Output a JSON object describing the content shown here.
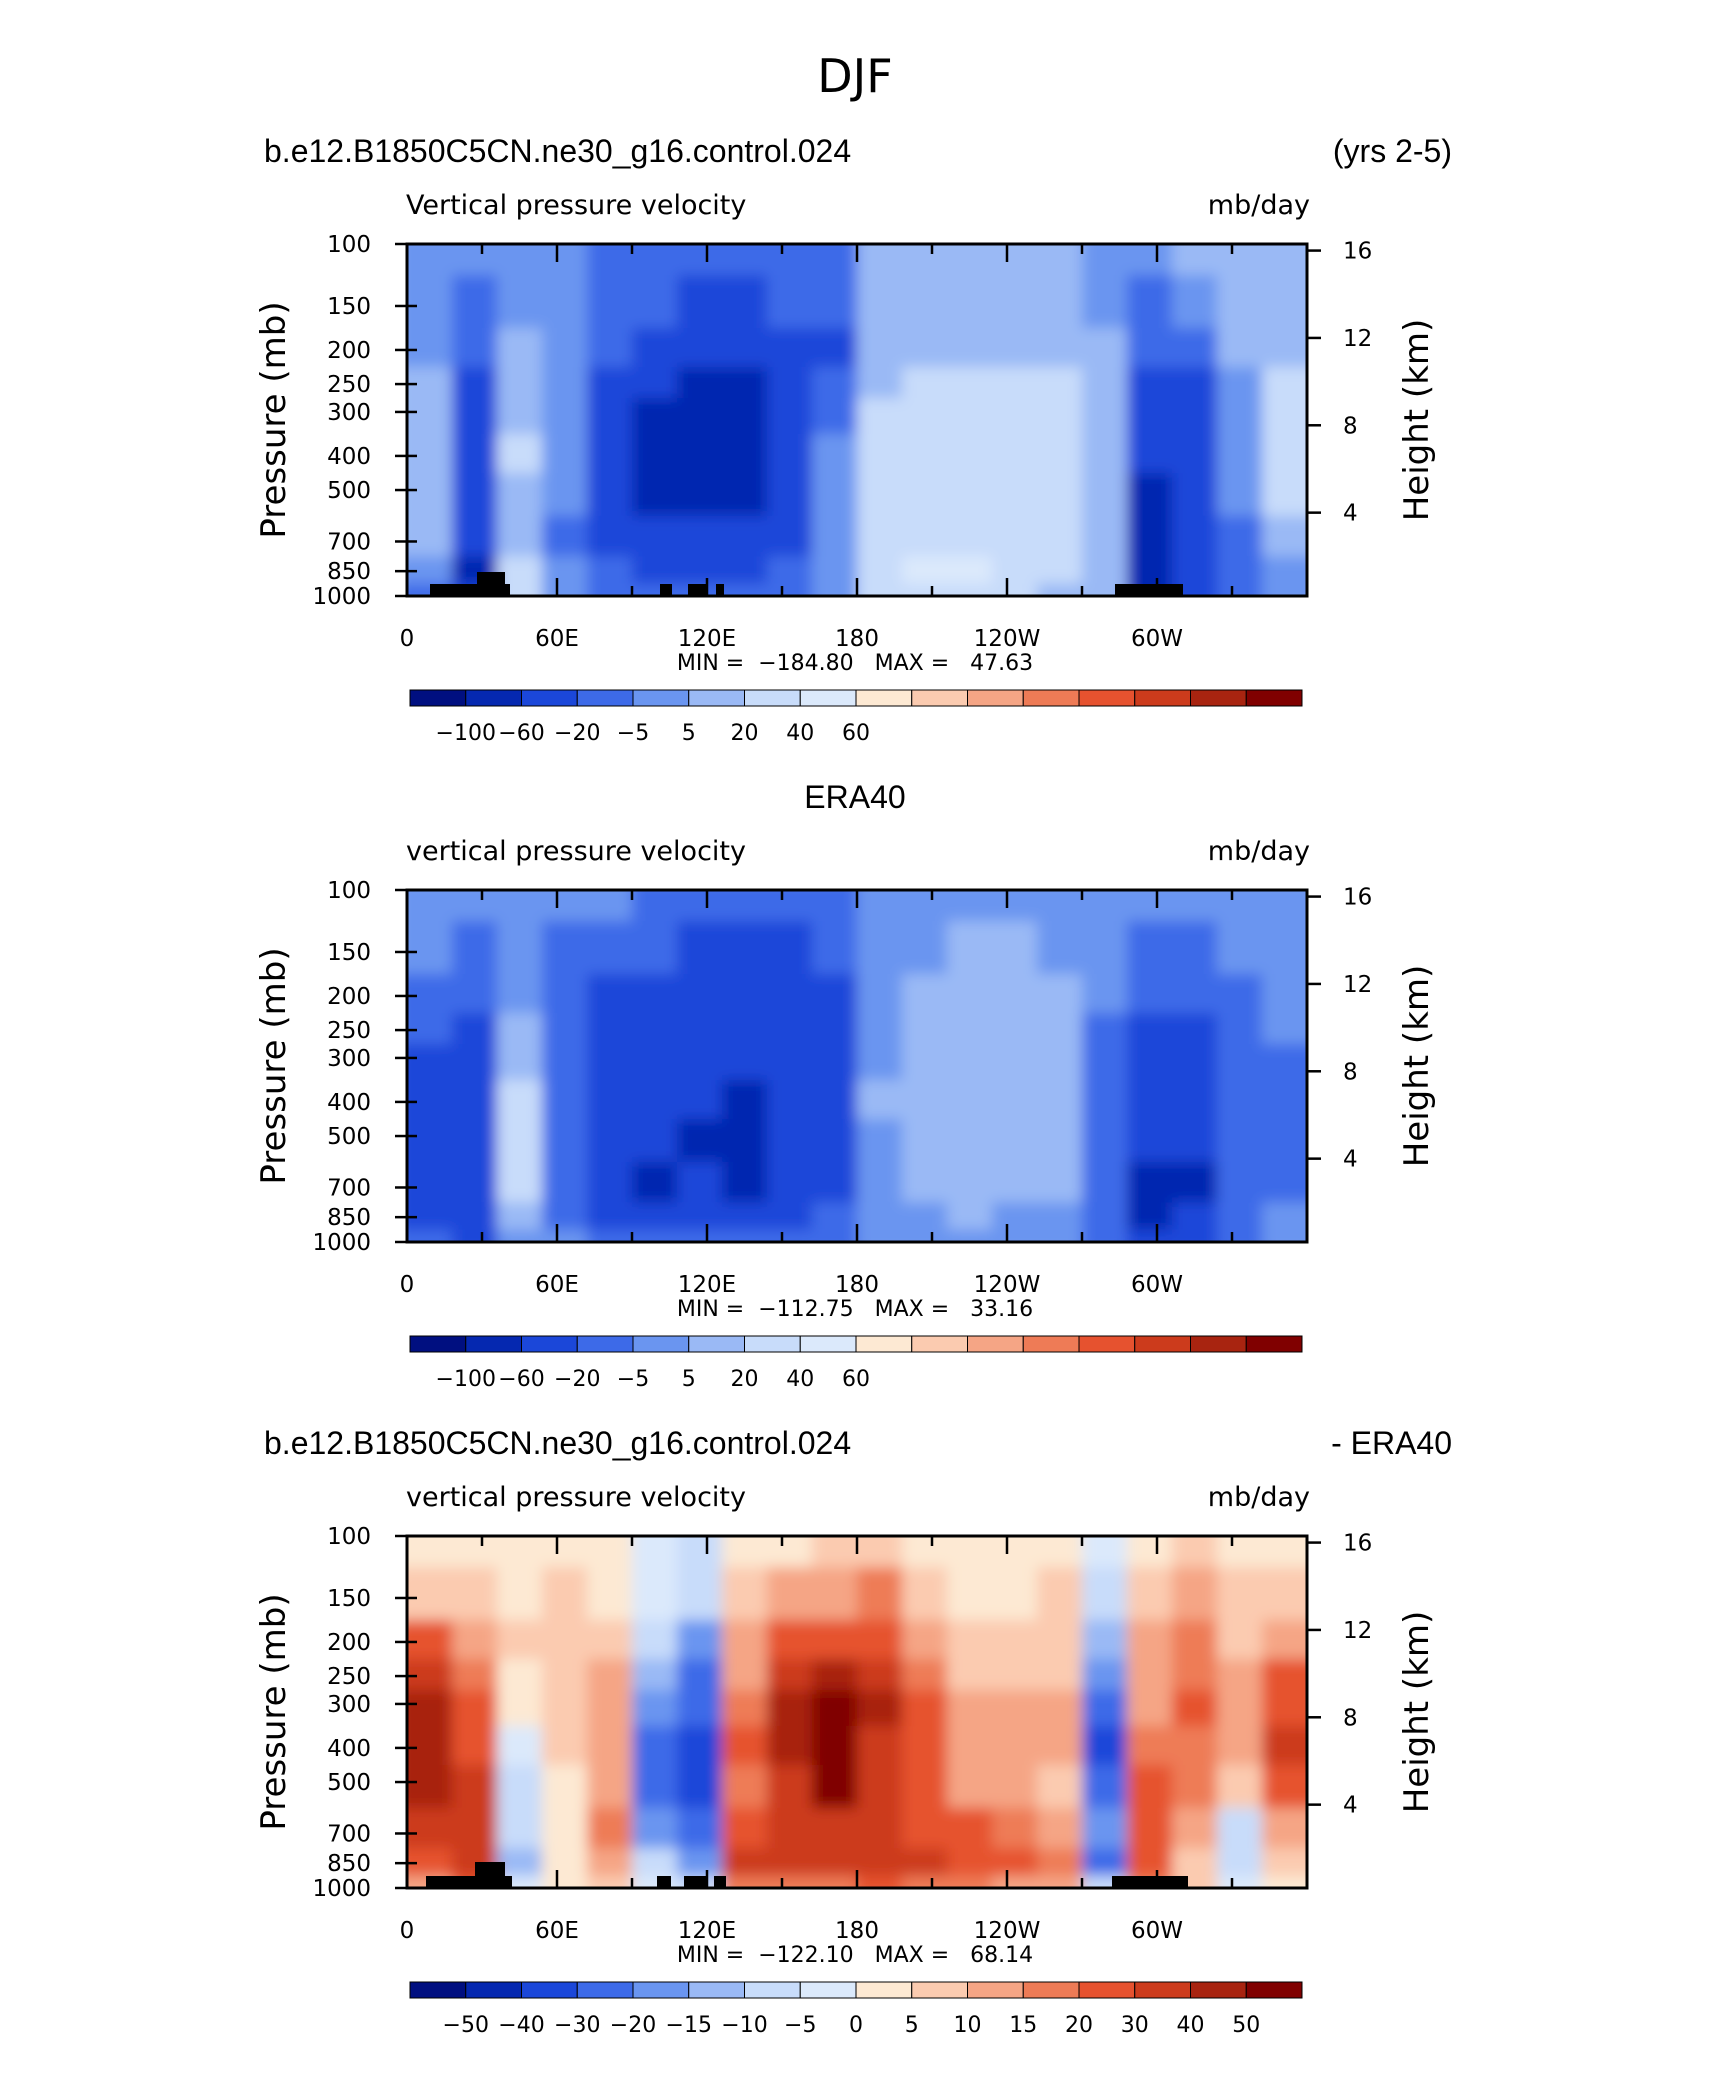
{
  "main_title": "DJF",
  "panels": [
    {
      "title_left": "b.e12.B1850C5CN.ne30_g16.control.024",
      "title_center": "",
      "title_right": "(yrs 2-5)",
      "subtitle_left": "Vertical pressure velocity",
      "subtitle_right": "mb/day",
      "stats": "MIN =  −184.80   MAX =   47.63",
      "colorbar_labels": [
        "−100",
        "−60",
        "−20",
        "−5",
        "5",
        "20",
        "40",
        "60"
      ]
    },
    {
      "title_left": "",
      "title_center": "ERA40",
      "title_right": "",
      "subtitle_left": "vertical pressure velocity",
      "subtitle_right": "mb/day",
      "stats": "MIN =  −112.75   MAX =   33.16",
      "colorbar_labels": [
        "−100",
        "−60",
        "−20",
        "−5",
        "5",
        "20",
        "40",
        "60"
      ]
    },
    {
      "title_left": "b.e12.B1850C5CN.ne30_g16.control.024",
      "title_center": "",
      "title_right": "- ERA40",
      "subtitle_left": "vertical pressure velocity",
      "subtitle_right": "mb/day",
      "stats": "MIN =  −122.10   MAX =   68.14",
      "colorbar_labels": [
        "−50",
        "−40",
        "−30",
        "−20",
        "−15",
        "−10",
        "−5",
        "0",
        "5",
        "10",
        "15",
        "20",
        "30",
        "40",
        "50"
      ]
    }
  ],
  "axes": {
    "ylabel_left": "Pressure (mb)",
    "ylabel_right": "Height (km)",
    "pressure_ticks": [
      "100",
      "150",
      "200",
      "250",
      "300",
      "400",
      "500",
      "700",
      "850",
      "1000"
    ],
    "height_ticks": [
      "16",
      "12",
      "8",
      "4"
    ],
    "lon_ticks": [
      "0",
      "60E",
      "120E",
      "180",
      "120W",
      "60W"
    ]
  },
  "colors": {
    "abs_scale": [
      "#000f80",
      "#0528b0",
      "#1b47d9",
      "#3d6ae8",
      "#6a95f0",
      "#9ab9f5",
      "#c8dcfa",
      "#dbe9fb",
      "#fde9d3",
      "#fbcbb0",
      "#f5a585",
      "#ee7b56",
      "#e6522f",
      "#cc3b1c",
      "#a82410",
      "#800000"
    ],
    "diff_scale": [
      "#000f80",
      "#0528b0",
      "#1b47d9",
      "#3d6ae8",
      "#6a95f0",
      "#9ab9f5",
      "#c8dcfa",
      "#dbe9fb",
      "#fde9d3",
      "#fbcbb0",
      "#f5a585",
      "#ee7b56",
      "#e6522f",
      "#cc3b1c",
      "#a82410",
      "#800000"
    ]
  },
  "chart_data": [
    {
      "type": "heatmap",
      "title": "b.e12.B1850C5CN.ne30_g16.control.024 (yrs 2-5)",
      "variable": "Vertical pressure velocity",
      "units": "mb/day",
      "xlabel": "",
      "ylabel": "Pressure (mb)",
      "ylabel_right": "Height (km)",
      "x_ticks": [
        "0",
        "60E",
        "120E",
        "180",
        "120W",
        "60W"
      ],
      "y_ticks": [
        100,
        150,
        200,
        250,
        300,
        400,
        500,
        700,
        850,
        1000
      ],
      "y_scale": "log",
      "ylim": [
        1000,
        100
      ],
      "min": -184.8,
      "max": 47.63,
      "contour_levels": [
        -100,
        -60,
        -20,
        -5,
        5,
        20,
        40,
        60
      ],
      "x": [
        0,
        18,
        36,
        54,
        72,
        90,
        108,
        126,
        144,
        162,
        180,
        198,
        216,
        234,
        252,
        270,
        288,
        306,
        324,
        342
      ],
      "y": [
        100,
        150,
        200,
        250,
        300,
        400,
        500,
        700,
        850,
        1000
      ],
      "values": [
        [
          -3,
          -3,
          0,
          2,
          -8,
          -10,
          -15,
          -15,
          -12,
          -10,
          5,
          6,
          6,
          5,
          5,
          2,
          -3,
          5,
          6,
          8
        ],
        [
          -3,
          -8,
          0,
          2,
          -10,
          -20,
          -25,
          -30,
          -20,
          -15,
          6,
          8,
          8,
          7,
          6,
          3,
          -8,
          4,
          8,
          10
        ],
        [
          2,
          -15,
          5,
          3,
          -20,
          -40,
          -50,
          -55,
          -40,
          -25,
          10,
          15,
          14,
          12,
          10,
          5,
          -20,
          -10,
          5,
          15
        ],
        [
          5,
          -30,
          10,
          3,
          -30,
          -55,
          -70,
          -75,
          -55,
          -20,
          15,
          25,
          24,
          22,
          20,
          8,
          -40,
          -25,
          3,
          20
        ],
        [
          10,
          -40,
          15,
          2,
          -35,
          -70,
          -80,
          -85,
          -60,
          -10,
          25,
          30,
          28,
          26,
          25,
          12,
          -50,
          -30,
          2,
          25
        ],
        [
          15,
          -50,
          20,
          0,
          -40,
          -80,
          -75,
          -80,
          -50,
          -5,
          30,
          30,
          30,
          28,
          28,
          15,
          -60,
          -35,
          0,
          30
        ],
        [
          12,
          -55,
          18,
          -5,
          -40,
          -70,
          -65,
          -70,
          -40,
          -2,
          30,
          32,
          30,
          28,
          30,
          15,
          -70,
          -40,
          -5,
          20
        ],
        [
          5,
          -60,
          15,
          -8,
          -35,
          -50,
          -50,
          -55,
          -25,
          0,
          25,
          30,
          30,
          28,
          25,
          10,
          -80,
          -45,
          -15,
          5
        ],
        [
          -5,
          -70,
          30,
          -5,
          -20,
          -30,
          -35,
          -40,
          -15,
          2,
          30,
          40,
          40,
          35,
          30,
          12,
          -90,
          -50,
          -20,
          -5
        ],
        [
          -10,
          -60,
          20,
          -3,
          -10,
          -15,
          -20,
          -20,
          -8,
          3,
          20,
          25,
          25,
          20,
          18,
          10,
          -70,
          -40,
          -15,
          -5
        ]
      ]
    },
    {
      "type": "heatmap",
      "title": "ERA40",
      "variable": "vertical pressure velocity",
      "units": "mb/day",
      "xlabel": "",
      "ylabel": "Pressure (mb)",
      "ylabel_right": "Height (km)",
      "x_ticks": [
        "0",
        "60E",
        "120E",
        "180",
        "120W",
        "60W"
      ],
      "y_ticks": [
        100,
        150,
        200,
        250,
        300,
        400,
        500,
        700,
        850,
        1000
      ],
      "y_scale": "log",
      "ylim": [
        1000,
        100
      ],
      "min": -112.75,
      "max": 33.16,
      "contour_levels": [
        -100,
        -60,
        -20,
        -5,
        5,
        20,
        40,
        60
      ],
      "x": [
        0,
        18,
        36,
        54,
        72,
        90,
        108,
        126,
        144,
        162,
        180,
        198,
        216,
        234,
        252,
        270,
        288,
        306,
        324,
        342
      ],
      "y": [
        100,
        150,
        200,
        250,
        300,
        400,
        500,
        700,
        850,
        1000
      ],
      "values": [
        [
          -3,
          -4,
          2,
          -3,
          -5,
          -6,
          -8,
          -10,
          -10,
          -6,
          -3,
          3,
          4,
          3,
          3,
          -3,
          -4,
          -4,
          -2,
          -2
        ],
        [
          -4,
          -10,
          3,
          -6,
          -15,
          -20,
          -25,
          -30,
          -30,
          -20,
          -4,
          4,
          6,
          5,
          4,
          -4,
          -8,
          -10,
          -4,
          -3
        ],
        [
          -8,
          -18,
          4,
          -10,
          -25,
          -35,
          -40,
          -45,
          -45,
          -35,
          -4,
          5,
          8,
          8,
          6,
          -5,
          -15,
          -20,
          -6,
          -4
        ],
        [
          -15,
          -28,
          8,
          -12,
          -35,
          -45,
          -50,
          -55,
          -55,
          -40,
          -2,
          6,
          10,
          10,
          8,
          -6,
          -25,
          -30,
          -8,
          -5
        ],
        [
          -25,
          -35,
          14,
          -15,
          -40,
          -50,
          -55,
          -60,
          -60,
          -45,
          0,
          10,
          12,
          12,
          10,
          -8,
          -35,
          -40,
          -12,
          -6
        ],
        [
          -30,
          -40,
          20,
          -15,
          -45,
          -55,
          -60,
          -65,
          -60,
          -45,
          5,
          12,
          14,
          14,
          12,
          -10,
          -50,
          -50,
          -15,
          -8
        ],
        [
          -35,
          -45,
          22,
          -15,
          -45,
          -60,
          -65,
          -70,
          -60,
          -40,
          3,
          10,
          14,
          14,
          12,
          -12,
          -60,
          -60,
          -18,
          -8
        ],
        [
          -40,
          -50,
          20,
          -12,
          -40,
          -70,
          -60,
          -65,
          -55,
          -35,
          0,
          6,
          10,
          10,
          8,
          -15,
          -80,
          -70,
          -20,
          -10
        ],
        [
          -35,
          -55,
          10,
          -8,
          -25,
          -50,
          -40,
          -40,
          -35,
          -20,
          -2,
          3,
          5,
          4,
          -2,
          -15,
          -100,
          -60,
          -15,
          -5
        ],
        [
          -10,
          -40,
          -5,
          -4,
          -10,
          -20,
          -15,
          -15,
          -12,
          -8,
          -2,
          2,
          2,
          1,
          -3,
          -8,
          -40,
          -25,
          -8,
          -3
        ]
      ]
    },
    {
      "type": "heatmap",
      "title": "b.e12.B1850C5CN.ne30_g16.control.024 - ERA40",
      "variable": "vertical pressure velocity",
      "units": "mb/day",
      "xlabel": "",
      "ylabel": "Pressure (mb)",
      "ylabel_right": "Height (km)",
      "x_ticks": [
        "0",
        "60E",
        "120E",
        "180",
        "120W",
        "60W"
      ],
      "y_ticks": [
        100,
        150,
        200,
        250,
        300,
        400,
        500,
        700,
        850,
        1000
      ],
      "y_scale": "log",
      "ylim": [
        1000,
        100
      ],
      "min": -122.1,
      "max": 68.14,
      "contour_levels": [
        -50,
        -40,
        -30,
        -20,
        -15,
        -10,
        -5,
        0,
        5,
        10,
        15,
        20,
        30,
        40,
        50
      ],
      "x": [
        0,
        18,
        36,
        54,
        72,
        90,
        108,
        126,
        144,
        162,
        180,
        198,
        216,
        234,
        252,
        270,
        288,
        306,
        324,
        342
      ],
      "y": [
        100,
        150,
        200,
        250,
        300,
        400,
        500,
        700,
        850,
        1000
      ],
      "values": [
        [
          2,
          4,
          2,
          4,
          3,
          -2,
          -6,
          3,
          4,
          5,
          7,
          4,
          2,
          1,
          2,
          -3,
          2,
          6,
          4,
          3
        ],
        [
          8,
          6,
          3,
          6,
          4,
          -4,
          -10,
          6,
          10,
          14,
          16,
          6,
          4,
          3,
          5,
          -8,
          5,
          10,
          6,
          6
        ],
        [
          20,
          10,
          6,
          8,
          8,
          -10,
          -20,
          12,
          20,
          28,
          26,
          12,
          6,
          6,
          6,
          -12,
          10,
          15,
          8,
          12
        ],
        [
          30,
          15,
          4,
          8,
          10,
          -15,
          -25,
          14,
          35,
          40,
          35,
          18,
          8,
          8,
          8,
          -18,
          12,
          18,
          10,
          20
        ],
        [
          40,
          20,
          3,
          6,
          10,
          -20,
          -30,
          18,
          45,
          55,
          40,
          22,
          12,
          10,
          10,
          -25,
          14,
          20,
          12,
          28
        ],
        [
          45,
          25,
          -3,
          5,
          12,
          -25,
          -35,
          20,
          45,
          60,
          38,
          24,
          14,
          10,
          10,
          -35,
          18,
          18,
          14,
          30
        ],
        [
          40,
          30,
          -6,
          4,
          14,
          -28,
          -35,
          18,
          38,
          50,
          35,
          22,
          14,
          10,
          8,
          -30,
          22,
          15,
          8,
          20
        ],
        [
          30,
          35,
          -10,
          3,
          15,
          -20,
          -30,
          25,
          35,
          35,
          30,
          25,
          20,
          18,
          12,
          -20,
          28,
          10,
          -8,
          10
        ],
        [
          25,
          30,
          -15,
          3,
          12,
          -10,
          -20,
          30,
          30,
          30,
          35,
          30,
          25,
          22,
          15,
          -25,
          25,
          8,
          -10,
          5
        ],
        [
          10,
          20,
          -5,
          2,
          6,
          -5,
          -10,
          15,
          15,
          18,
          20,
          18,
          15,
          12,
          10,
          -10,
          15,
          5,
          -5,
          2
        ]
      ]
    }
  ]
}
